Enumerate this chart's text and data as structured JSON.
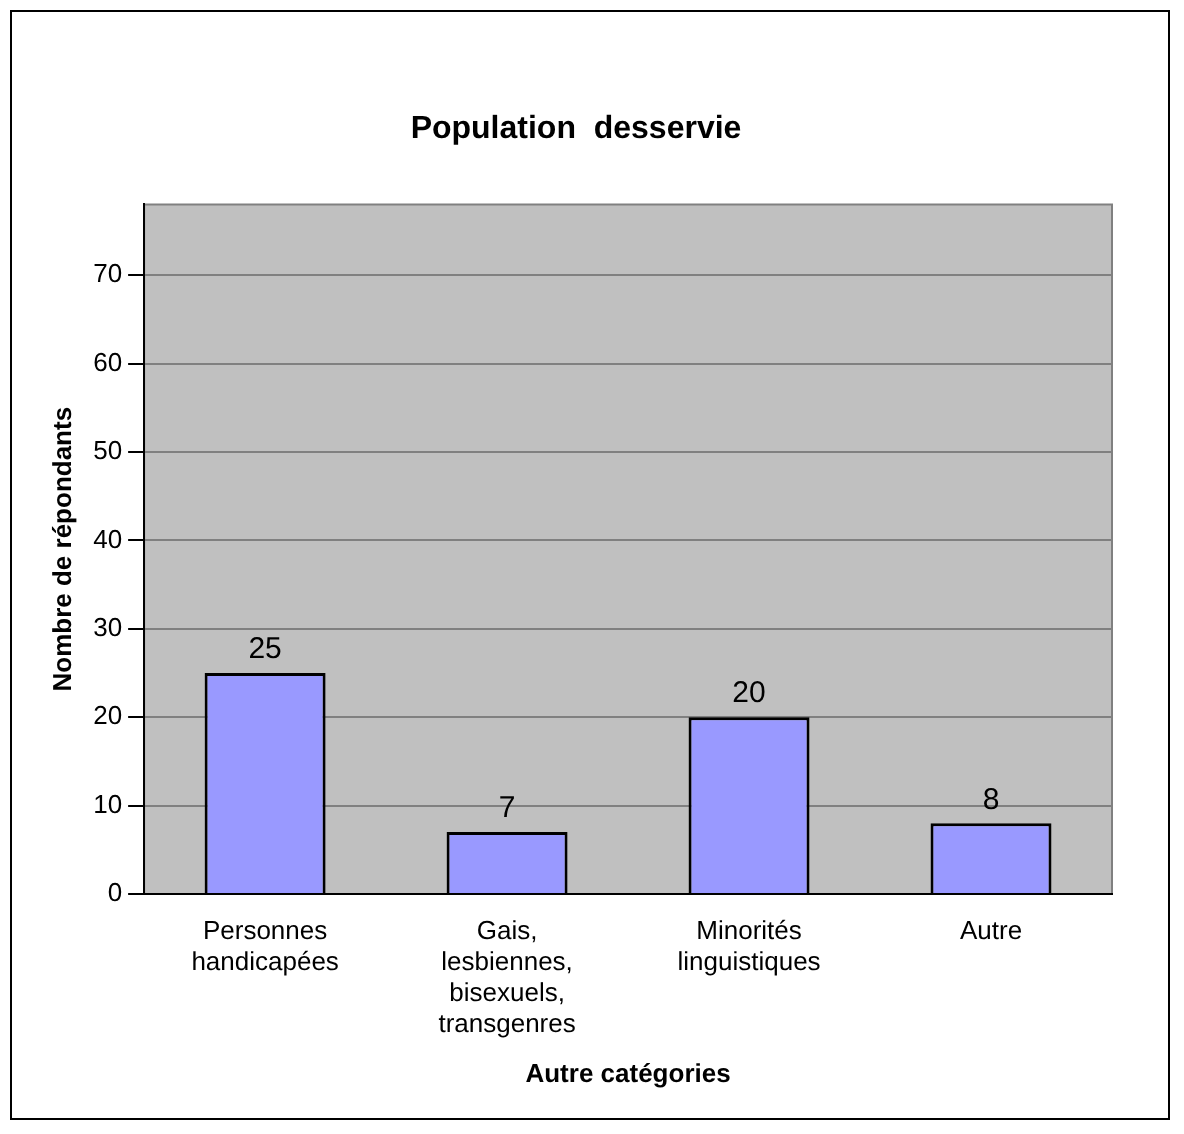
{
  "chart_data": {
    "type": "bar",
    "title": "Population  desservie",
    "xlabel": "Autre catégories",
    "ylabel": "Nombre de répondants",
    "categories": [
      "Personnes handicapées",
      "Gais, lesbiennes, bisexuels, transgenres",
      "Minorités linguistiques",
      "Autre"
    ],
    "values": [
      25,
      7,
      20,
      8
    ],
    "color": "#9999ff",
    "ylim": [
      0,
      78
    ],
    "yticks": [
      0,
      10,
      20,
      30,
      40,
      50,
      60,
      70
    ],
    "grid": "y",
    "data_labels": true,
    "legend": false
  }
}
